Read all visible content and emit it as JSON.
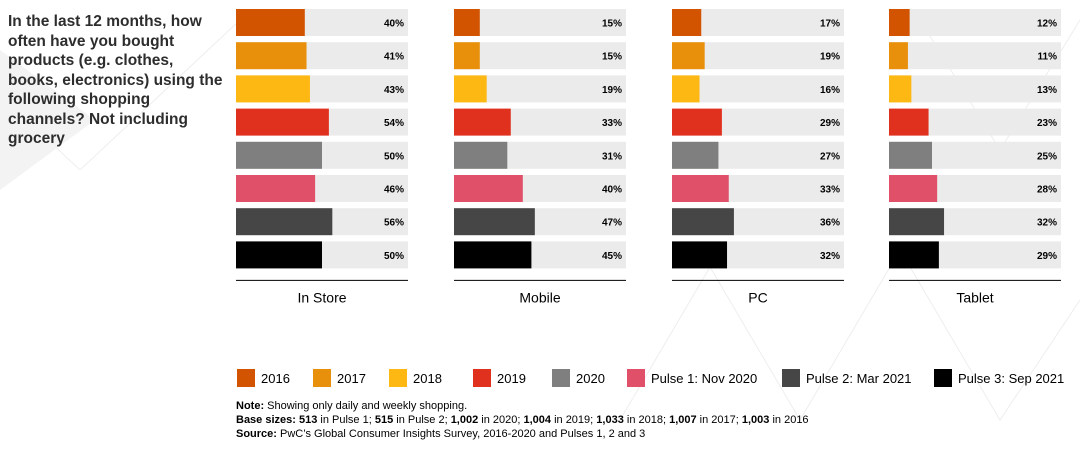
{
  "question": "In the last 12 months, how often have you bought products (e.g. clothes, books, electronics) using the following shopping channels? Not including grocery",
  "chart_data": {
    "type": "bar",
    "orientation": "horizontal",
    "unit": "%",
    "xlim": [
      0,
      100
    ],
    "grid": false,
    "legend_position": "bottom",
    "panels": [
      "In Store",
      "Mobile",
      "PC",
      "Tablet"
    ],
    "series": [
      {
        "name": "2016",
        "color": "#d35400",
        "values": [
          40,
          15,
          17,
          12
        ]
      },
      {
        "name": "2017",
        "color": "#e8900c",
        "values": [
          41,
          15,
          19,
          11
        ]
      },
      {
        "name": "2018",
        "color": "#fdb813",
        "values": [
          43,
          19,
          16,
          13
        ]
      },
      {
        "name": "2019",
        "color": "#e0301e",
        "values": [
          54,
          33,
          29,
          23
        ]
      },
      {
        "name": "2020",
        "color": "#7f7f7f",
        "values": [
          50,
          31,
          27,
          25
        ]
      },
      {
        "name": "Pulse 1: Nov 2020",
        "color": "#e05068",
        "values": [
          46,
          40,
          33,
          28
        ]
      },
      {
        "name": "Pulse 2: Mar 2021",
        "color": "#464646",
        "values": [
          56,
          47,
          36,
          32
        ]
      },
      {
        "name": "Pulse 3: Sep 2021",
        "color": "#000000",
        "values": [
          50,
          45,
          32,
          29
        ]
      }
    ],
    "bar_background": "#ebebeb"
  },
  "notes": {
    "note_label": "Note:",
    "note_text": " Showing only daily and weekly shopping.",
    "base_label": "Base sizes:",
    "base_parts": [
      {
        "b": "513",
        "t": " in Pulse 1; "
      },
      {
        "b": "515",
        "t": " in Pulse 2; "
      },
      {
        "b": "1,002",
        "t": " in 2020; "
      },
      {
        "b": "1,004",
        "t": " in 2019; "
      },
      {
        "b": "1,033",
        "t": " in 2018; "
      },
      {
        "b": "1,007",
        "t": " in 2017; "
      },
      {
        "b": "1,003",
        "t": " in 2016"
      }
    ],
    "source_label": "Source:",
    "source_text": " PwC’s Global Consumer Insights Survey, 2016-2020 and Pulses 1, 2 and 3"
  }
}
